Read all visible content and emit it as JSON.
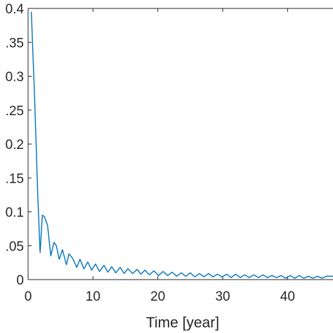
{
  "chart_data": {
    "type": "line",
    "title": "",
    "xlabel": "Time [year]",
    "ylabel": "",
    "xlim": [
      0,
      47
    ],
    "ylim": [
      0,
      0.4
    ],
    "grid": false,
    "x_ticks": [
      "0",
      "10",
      "20",
      "30",
      "40"
    ],
    "y_ticks": [
      "0",
      ".05",
      "0.1",
      ".15",
      "0.2",
      ".25",
      "0.3",
      ".35",
      "0.4"
    ],
    "series": [
      {
        "color": "#0072bd",
        "x": [
          0.5,
          1.0,
          1.5,
          1.85,
          2.2,
          2.5,
          3.0,
          3.5,
          4.0,
          4.35,
          4.8,
          5.3,
          5.9,
          6.3,
          6.9,
          7.5,
          8.0,
          8.6,
          9.2,
          9.8,
          10.4,
          11.0,
          11.7,
          12.3,
          12.9,
          13.5,
          14.2,
          14.8,
          15.4,
          16.1,
          16.8,
          17.4,
          18.0,
          18.7,
          19.4,
          20.1,
          20.8,
          21.5,
          22.2,
          22.9,
          23.6,
          24.3,
          25.0,
          25.7,
          26.4,
          27.1,
          27.8,
          28.5,
          29.2,
          29.9,
          30.6,
          31.3,
          32.0,
          32.7,
          33.4,
          34.1,
          34.8,
          35.5,
          36.2,
          36.9,
          37.6,
          38.3,
          39.0,
          39.7,
          40.4,
          41.1,
          41.8,
          42.5,
          43.2,
          43.9,
          44.6,
          45.3,
          46.0,
          47.0
        ],
        "y": [
          0.395,
          0.27,
          0.12,
          0.04,
          0.095,
          0.093,
          0.08,
          0.035,
          0.055,
          0.05,
          0.03,
          0.044,
          0.022,
          0.038,
          0.031,
          0.018,
          0.03,
          0.016,
          0.026,
          0.014,
          0.023,
          0.012,
          0.021,
          0.011,
          0.019,
          0.01,
          0.018,
          0.009,
          0.016,
          0.009,
          0.015,
          0.008,
          0.014,
          0.007,
          0.013,
          0.006,
          0.012,
          0.006,
          0.011,
          0.005,
          0.01,
          0.005,
          0.01,
          0.004,
          0.009,
          0.004,
          0.009,
          0.004,
          0.008,
          0.004,
          0.008,
          0.003,
          0.008,
          0.003,
          0.007,
          0.003,
          0.007,
          0.003,
          0.007,
          0.003,
          0.006,
          0.003,
          0.006,
          0.002,
          0.006,
          0.002,
          0.006,
          0.002,
          0.005,
          0.002,
          0.005,
          0.002,
          0.005,
          0.005
        ]
      }
    ]
  }
}
